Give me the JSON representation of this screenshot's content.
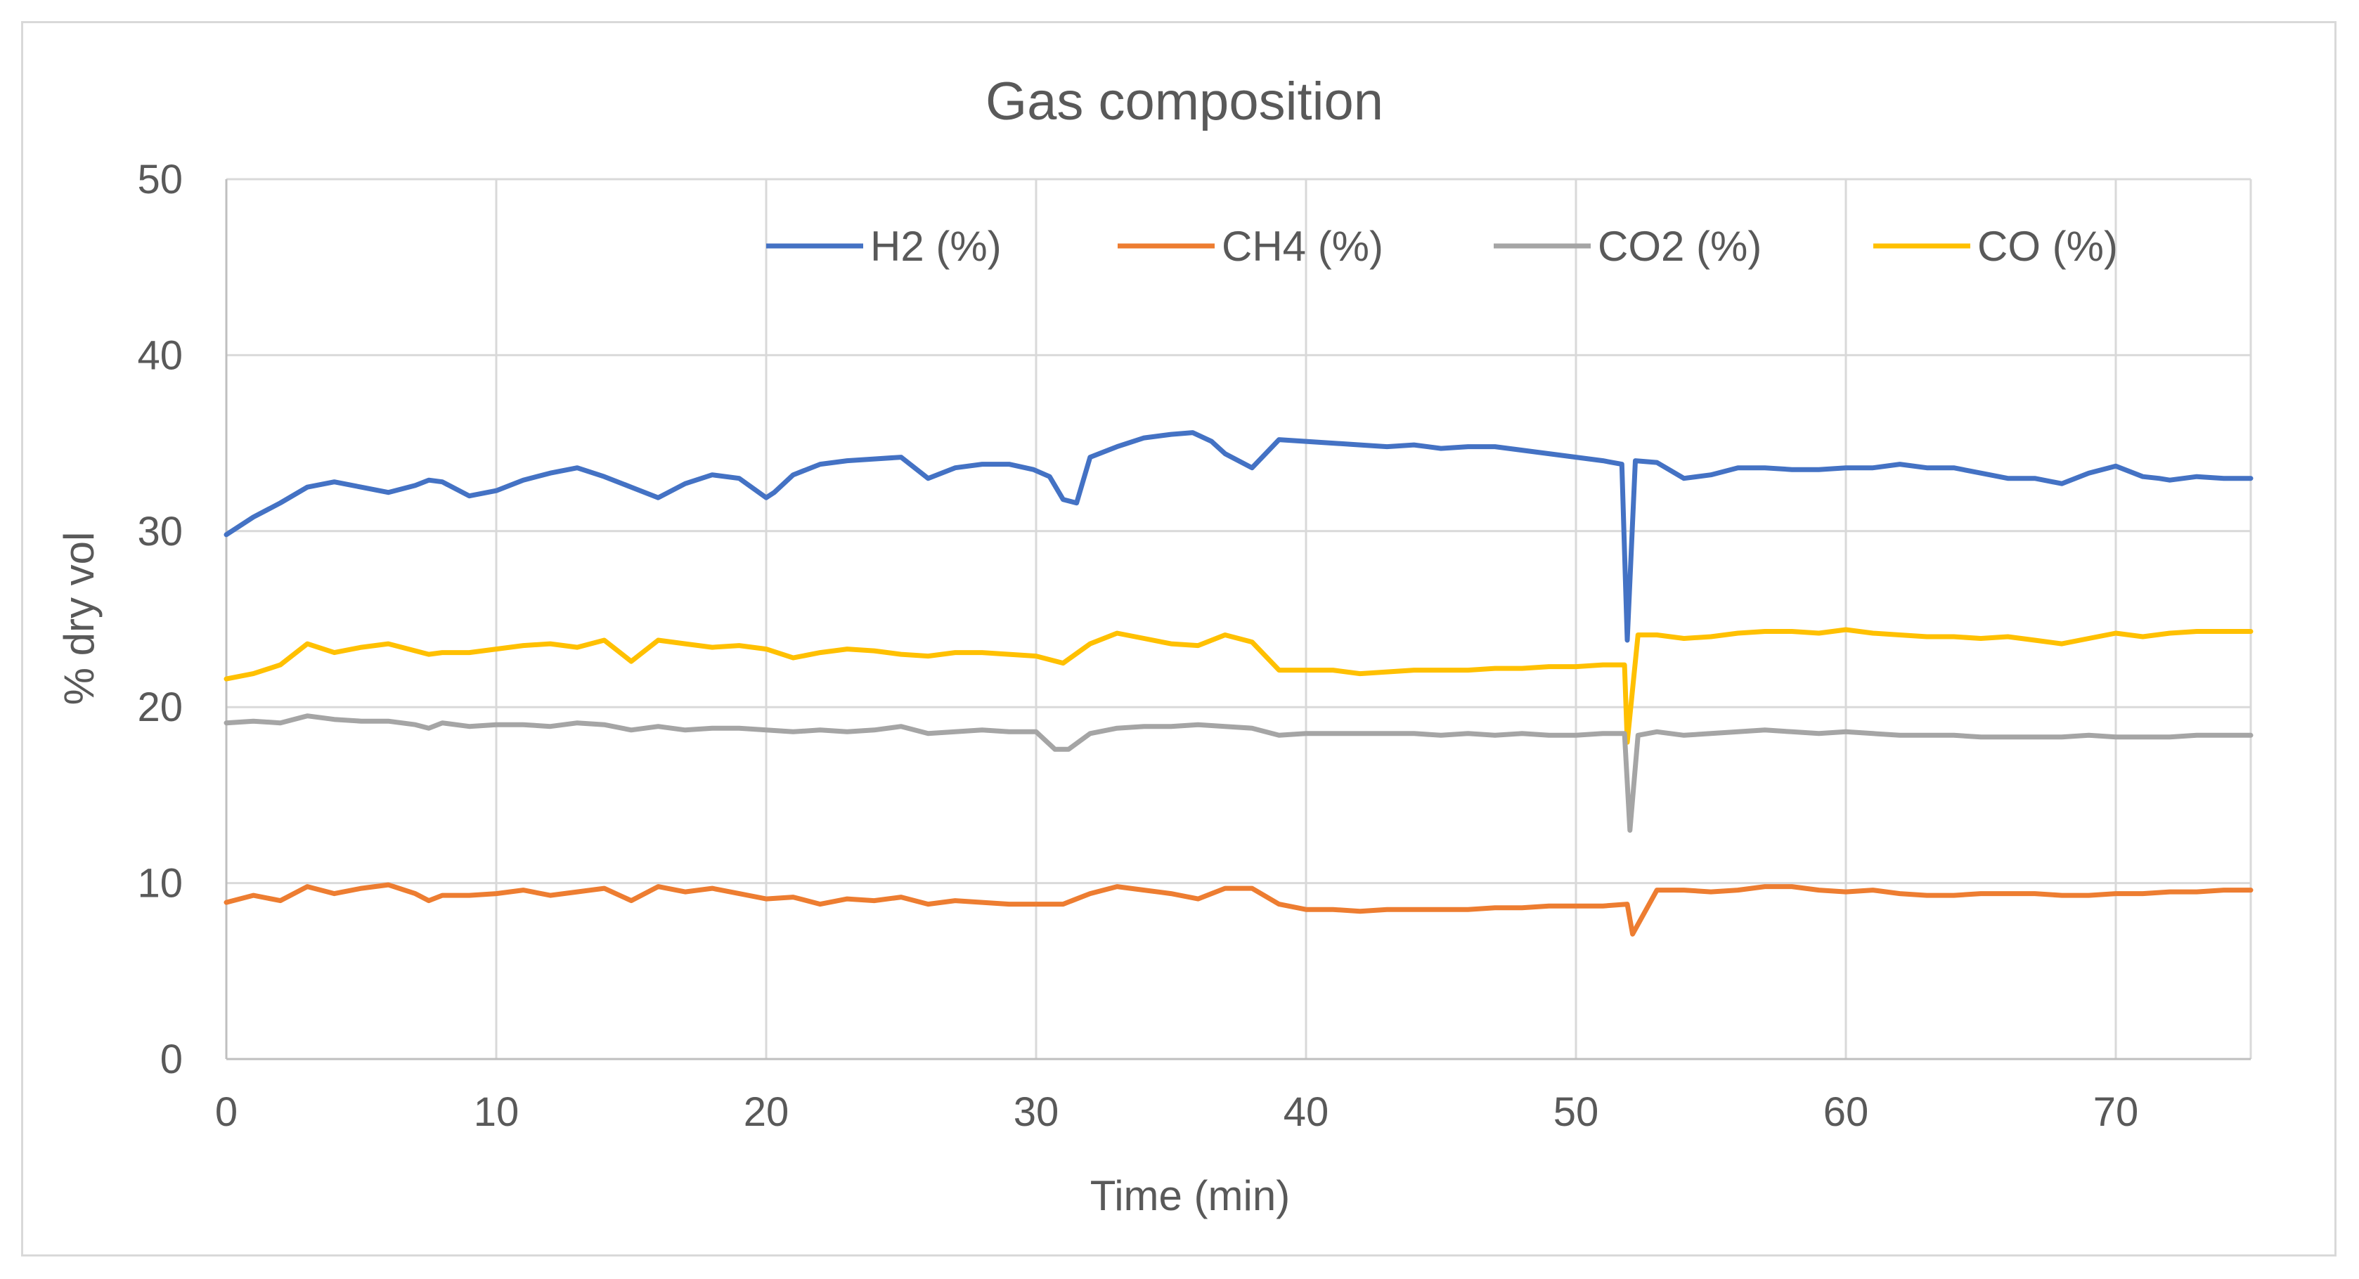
{
  "chart_data": {
    "type": "line",
    "title": "Gas composition",
    "xlabel": "Time (min)",
    "ylabel": "% dry vol",
    "xlim": [
      0,
      75
    ],
    "ylim": [
      0,
      50
    ],
    "xticks": [
      0,
      10,
      20,
      30,
      40,
      50,
      60,
      70
    ],
    "yticks": [
      0,
      10,
      20,
      30,
      40,
      50
    ],
    "grid": "vertical and horizontal",
    "legend_position": "top",
    "series": [
      {
        "name": "H2 (%)",
        "color": "#4472C4",
        "x": [
          0,
          1,
          2,
          3,
          4,
          5,
          6,
          7,
          7.5,
          8,
          9,
          10,
          11,
          12,
          13,
          14,
          15,
          16,
          17,
          18,
          19,
          20,
          20.3,
          21,
          22,
          23,
          24,
          25,
          26,
          27,
          28,
          29,
          29.9,
          30.5,
          31,
          31.5,
          32,
          33,
          34,
          35,
          35.8,
          36.5,
          37,
          38,
          39,
          40,
          41,
          42,
          43,
          44,
          45,
          46,
          47,
          48,
          49,
          50,
          51,
          51.7,
          51.9,
          52.2,
          53,
          54,
          55,
          56,
          57,
          58,
          59,
          60,
          61,
          62,
          63,
          64,
          65,
          66,
          67,
          68,
          69,
          70,
          71,
          71.6,
          72,
          73,
          74,
          75
        ],
        "values": [
          29.8,
          30.8,
          31.6,
          32.5,
          32.8,
          32.5,
          32.2,
          32.6,
          32.9,
          32.8,
          32.0,
          32.3,
          32.9,
          33.3,
          33.6,
          33.1,
          32.5,
          31.9,
          32.7,
          33.2,
          33.0,
          31.9,
          32.2,
          33.2,
          33.8,
          34.0,
          34.1,
          34.2,
          33.0,
          33.6,
          33.8,
          33.8,
          33.5,
          33.1,
          31.8,
          31.6,
          34.2,
          34.8,
          35.3,
          35.5,
          35.6,
          35.1,
          34.4,
          33.6,
          35.2,
          35.1,
          35.0,
          34.9,
          34.8,
          34.9,
          34.7,
          34.8,
          34.8,
          34.6,
          34.4,
          34.2,
          34.0,
          33.8,
          23.8,
          34.0,
          33.9,
          33.0,
          33.2,
          33.6,
          33.6,
          33.5,
          33.5,
          33.6,
          33.6,
          33.8,
          33.6,
          33.6,
          33.3,
          33.0,
          33.0,
          32.7,
          33.3,
          33.7,
          33.1,
          33.0,
          32.9,
          33.1,
          33.0,
          33.0
        ]
      },
      {
        "name": "CH4 (%)",
        "color": "#ED7D31",
        "x": [
          0,
          1,
          2,
          3,
          4,
          5,
          6,
          7,
          7.5,
          8,
          9,
          10,
          11,
          12,
          13,
          14,
          15,
          16,
          17,
          18,
          19,
          20,
          21,
          22,
          23,
          24,
          25,
          26,
          27,
          28,
          29,
          30,
          31,
          32,
          33,
          34,
          35,
          36,
          37,
          38,
          39,
          40,
          41,
          42,
          43,
          44,
          45,
          46,
          47,
          48,
          49,
          50,
          51,
          51.9,
          52.1,
          53,
          54,
          55,
          56,
          57,
          58,
          59,
          60,
          61,
          62,
          63,
          64,
          65,
          66,
          67,
          68,
          69,
          70,
          71,
          72,
          73,
          74,
          75
        ],
        "values": [
          8.9,
          9.3,
          9.0,
          9.8,
          9.4,
          9.7,
          9.9,
          9.4,
          9.0,
          9.3,
          9.3,
          9.4,
          9.6,
          9.3,
          9.5,
          9.7,
          9.0,
          9.8,
          9.5,
          9.7,
          9.4,
          9.1,
          9.2,
          8.8,
          9.1,
          9.0,
          9.2,
          8.8,
          9.0,
          8.9,
          8.8,
          8.8,
          8.8,
          9.4,
          9.8,
          9.6,
          9.4,
          9.1,
          9.7,
          9.7,
          8.8,
          8.5,
          8.5,
          8.4,
          8.5,
          8.5,
          8.5,
          8.5,
          8.6,
          8.6,
          8.7,
          8.7,
          8.7,
          8.8,
          7.1,
          9.6,
          9.6,
          9.5,
          9.6,
          9.8,
          9.8,
          9.6,
          9.5,
          9.6,
          9.4,
          9.3,
          9.3,
          9.4,
          9.4,
          9.4,
          9.3,
          9.3,
          9.4,
          9.4,
          9.5,
          9.5,
          9.6,
          9.6
        ]
      },
      {
        "name": "CO2 (%)",
        "color": "#A5A5A5",
        "x": [
          0,
          1,
          2,
          3,
          4,
          5,
          6,
          7,
          7.5,
          8,
          9,
          10,
          11,
          12,
          13,
          14,
          15,
          16,
          17,
          18,
          19,
          20,
          21,
          22,
          23,
          24,
          25,
          26,
          27,
          28,
          29,
          30,
          30.7,
          31.2,
          32,
          33,
          34,
          35,
          36,
          37,
          38,
          39,
          40,
          41,
          42,
          43,
          44,
          45,
          46,
          47,
          48,
          49,
          50,
          51,
          51.8,
          52,
          52.3,
          53,
          54,
          55,
          56,
          57,
          58,
          59,
          60,
          61,
          62,
          63,
          64,
          65,
          66,
          67,
          68,
          69,
          70,
          71,
          72,
          73,
          74,
          75
        ],
        "values": [
          19.1,
          19.2,
          19.1,
          19.5,
          19.3,
          19.2,
          19.2,
          19.0,
          18.8,
          19.1,
          18.9,
          19.0,
          19.0,
          18.9,
          19.1,
          19.0,
          18.7,
          18.9,
          18.7,
          18.8,
          18.8,
          18.7,
          18.6,
          18.7,
          18.6,
          18.7,
          18.9,
          18.5,
          18.6,
          18.7,
          18.6,
          18.6,
          17.6,
          17.6,
          18.5,
          18.8,
          18.9,
          18.9,
          19.0,
          18.9,
          18.8,
          18.4,
          18.5,
          18.5,
          18.5,
          18.5,
          18.5,
          18.4,
          18.5,
          18.4,
          18.5,
          18.4,
          18.4,
          18.5,
          18.5,
          13.0,
          18.4,
          18.6,
          18.4,
          18.5,
          18.6,
          18.7,
          18.6,
          18.5,
          18.6,
          18.5,
          18.4,
          18.4,
          18.4,
          18.3,
          18.3,
          18.3,
          18.3,
          18.4,
          18.3,
          18.3,
          18.3,
          18.4,
          18.4,
          18.4
        ]
      },
      {
        "name": "CO (%)",
        "color": "#FFC000",
        "x": [
          0,
          1,
          2,
          3,
          4,
          5,
          6,
          7,
          7.5,
          8,
          9,
          10,
          11,
          12,
          13,
          14,
          15,
          16,
          17,
          18,
          19,
          20,
          21,
          22,
          23,
          24,
          25,
          26,
          27,
          28,
          29,
          30,
          31,
          32,
          33,
          34,
          35,
          36,
          37,
          38,
          39,
          40,
          41,
          42,
          43,
          44,
          45,
          46,
          47,
          48,
          49,
          50,
          51,
          51.8,
          51.9,
          52.3,
          53,
          54,
          55,
          56,
          57,
          58,
          59,
          60,
          61,
          62,
          63,
          64,
          65,
          66,
          67,
          68,
          69,
          70,
          71,
          72,
          73,
          74,
          75
        ],
        "values": [
          21.6,
          21.9,
          22.4,
          23.6,
          23.1,
          23.4,
          23.6,
          23.2,
          23.0,
          23.1,
          23.1,
          23.3,
          23.5,
          23.6,
          23.4,
          23.8,
          22.6,
          23.8,
          23.6,
          23.4,
          23.5,
          23.3,
          22.8,
          23.1,
          23.3,
          23.2,
          23.0,
          22.9,
          23.1,
          23.1,
          23.0,
          22.9,
          22.5,
          23.6,
          24.2,
          23.9,
          23.6,
          23.5,
          24.1,
          23.7,
          22.1,
          22.1,
          22.1,
          21.9,
          22.0,
          22.1,
          22.1,
          22.1,
          22.2,
          22.2,
          22.3,
          22.3,
          22.4,
          22.4,
          18.0,
          24.1,
          24.1,
          23.9,
          24.0,
          24.2,
          24.3,
          24.3,
          24.2,
          24.4,
          24.2,
          24.1,
          24.0,
          24.0,
          23.9,
          24.0,
          23.8,
          23.6,
          23.9,
          24.2,
          24.0,
          24.2,
          24.3,
          24.3,
          24.3
        ]
      }
    ]
  }
}
